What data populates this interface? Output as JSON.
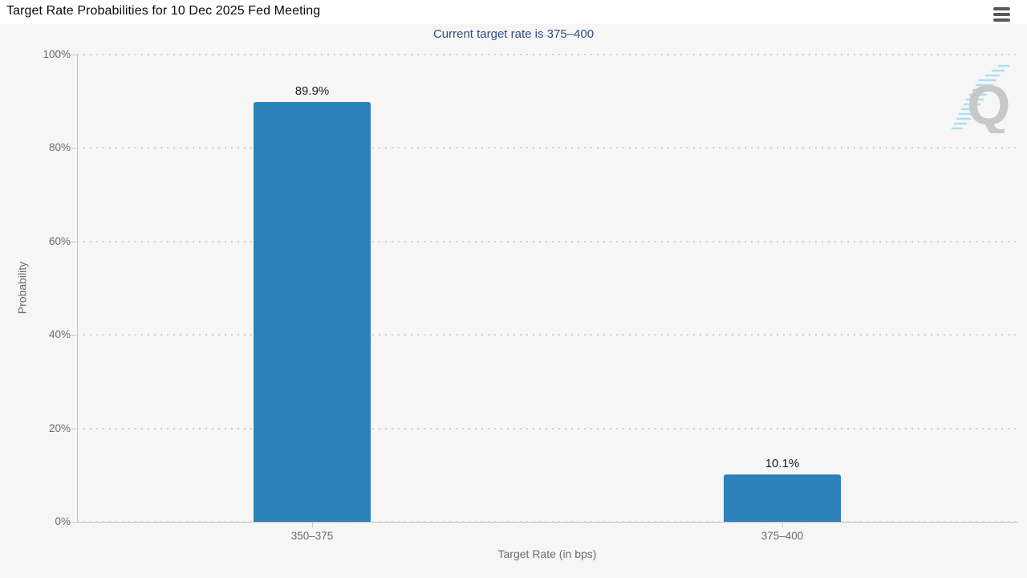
{
  "header": {
    "title": "Target Rate Probabilities for 10 Dec 2025 Fed Meeting",
    "menu_icon": "hamburger-icon"
  },
  "chart_data": {
    "type": "bar",
    "title": "Target Rate Probabilities for 10 Dec 2025 Fed Meeting",
    "subtitle": "Current target rate is 375–400",
    "categories": [
      "350–375",
      "375–400"
    ],
    "values": [
      89.9,
      10.1
    ],
    "value_labels": [
      "89.9%",
      "10.1%"
    ],
    "xlabel": "Target Rate (in bps)",
    "ylabel": "Probability",
    "ylim": [
      0,
      100
    ],
    "ytick_values": [
      0,
      20,
      40,
      60,
      80,
      100
    ],
    "ytick_labels": [
      "0%",
      "20%",
      "40%",
      "60%",
      "80%",
      "100%"
    ],
    "grid": "horizontal-dotted",
    "legend": "none",
    "bar_color": "#2c81ba"
  },
  "watermark": {
    "letter": "Q"
  },
  "colors": {
    "background": "#f6f6f6",
    "titlebar_background": "#ffffff",
    "title_text": "#0a0a0a",
    "subtitle_text": "#2e4e7e",
    "bar": "#2c81ba",
    "axis_line": "#c3c3c3",
    "gridline": "#cfcfcf",
    "tick_text": "#6b6b6b",
    "value_label_text": "#1a1a1a",
    "hamburger": "#58595b",
    "watermark_q": "#c4c4c4",
    "watermark_dashes": "#a8dcf0"
  }
}
